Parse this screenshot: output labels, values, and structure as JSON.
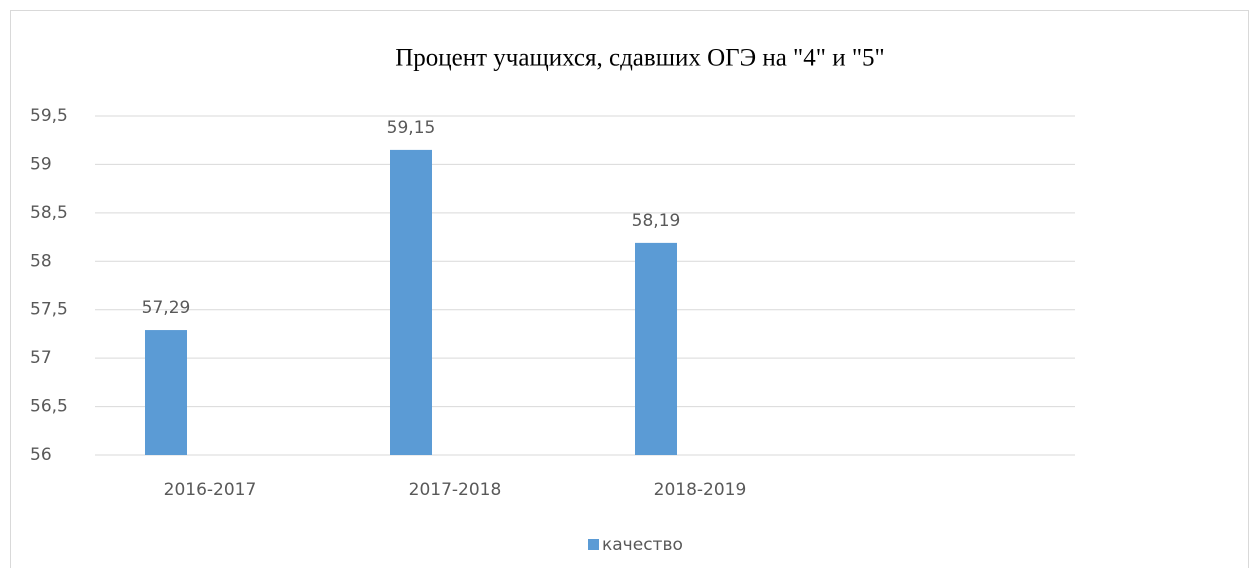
{
  "chart_data": {
    "type": "bar",
    "title": "Процент учащихся, сдавших ОГЭ на \"4\" и \"5\"",
    "categories": [
      "2016-2017",
      "2017-2018",
      "2018-2019"
    ],
    "series": [
      {
        "name": "качество",
        "color": "#5b9bd5",
        "values": [
          57.29,
          59.15,
          58.19
        ],
        "value_labels": [
          "57,29",
          "59,15",
          "58,19"
        ]
      }
    ],
    "ylim": [
      56,
      59.5
    ],
    "yticks": [
      56,
      {
        "value": 56.5,
        "label": "56,5"
      },
      57,
      {
        "value": 57.5,
        "label": "57,5"
      },
      58,
      {
        "value": 58.5,
        "label": "58,5"
      },
      59,
      {
        "value": 59.5,
        "label": "59,5"
      }
    ],
    "grid": true,
    "legend": "bottom"
  }
}
